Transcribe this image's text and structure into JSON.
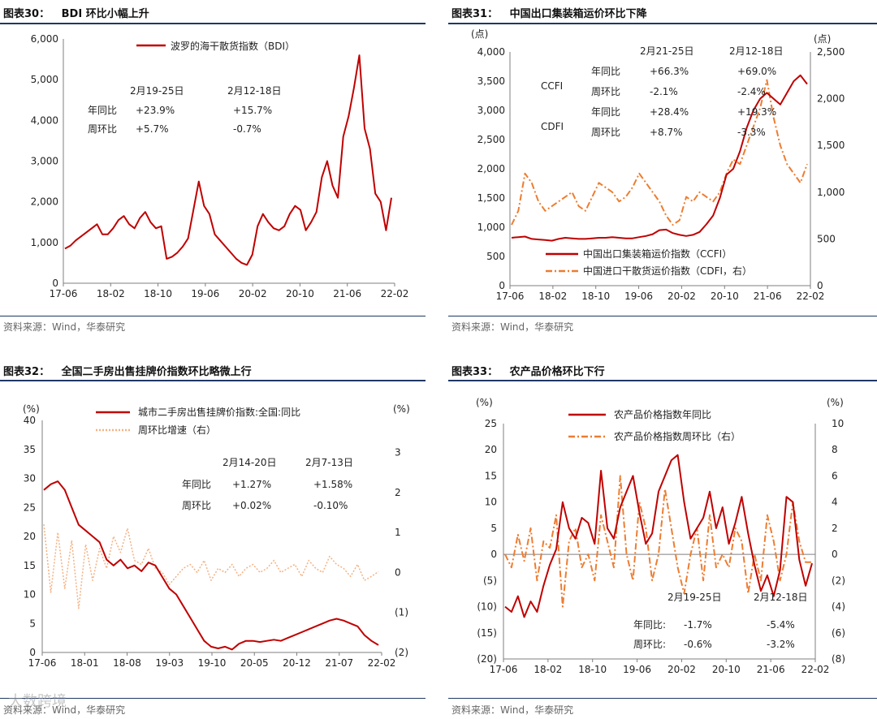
{
  "source_text": "资料来源：Wind，华泰研究",
  "watermark": "大数跨境",
  "colors": {
    "red": "#c00000",
    "orange": "#ed7d31",
    "light_orange": "#f4b183",
    "axis": "#7f7f7f",
    "rule": "#1f3864"
  },
  "chart_data": [
    {
      "type": "line",
      "label": "图表30：",
      "title": "BDI 环比小幅上升",
      "x_ticks": [
        "17-06",
        "18-02",
        "18-10",
        "19-06",
        "20-02",
        "20-10",
        "21-06",
        "22-02"
      ],
      "y_ticks": [
        "0",
        "1,000",
        "2,000",
        "3,000",
        "4,000",
        "5,000",
        "6,000"
      ],
      "ylim": [
        0,
        6000
      ],
      "series": [
        {
          "name": "波罗的海干散货指数（BDI）",
          "values": [
            850,
            920,
            1050,
            1150,
            1250,
            1350,
            1450,
            1200,
            1200,
            1350,
            1550,
            1650,
            1450,
            1350,
            1600,
            1750,
            1500,
            1350,
            1400,
            600,
            650,
            750,
            900,
            1100,
            1800,
            2500,
            1900,
            1700,
            1200,
            1050,
            900,
            750,
            600,
            500,
            450,
            700,
            1400,
            1700,
            1500,
            1350,
            1300,
            1400,
            1700,
            1900,
            1800,
            1300,
            1500,
            1750,
            2600,
            3000,
            2400,
            2100,
            3600,
            4100,
            4800,
            5600,
            3800,
            3300,
            2200,
            2000,
            1300,
            2100
          ]
        }
      ],
      "annotations": {
        "header": [
          "2月19-25日",
          "2月12-18日"
        ],
        "rows": [
          {
            "label": "年同比",
            "values": [
              "+23.9%",
              "+15.7%"
            ]
          },
          {
            "label": "周环比",
            "values": [
              "+5.7%",
              "-0.7%"
            ]
          }
        ]
      }
    },
    {
      "type": "line",
      "label": "图表31：",
      "title": "中国出口集装箱运价环比下降",
      "x_ticks": [
        "17-06",
        "18-02",
        "18-10",
        "19-06",
        "20-02",
        "20-10",
        "21-06",
        "22-02"
      ],
      "y_left_unit": "(点)",
      "y_right_unit": "(点)",
      "y_left_ticks": [
        "0",
        "500",
        "1,000",
        "1,500",
        "2,000",
        "2,500",
        "3,000",
        "3,500",
        "4,000"
      ],
      "y_right_ticks": [
        "0",
        "500",
        "1,000",
        "1,500",
        "2,000",
        "2,500"
      ],
      "ylim_left": [
        0,
        4000
      ],
      "ylim_right": [
        0,
        2500
      ],
      "series": [
        {
          "name": "中国出口集装箱运价指数（CCFI）",
          "axis": "left",
          "values": [
            820,
            830,
            840,
            800,
            790,
            780,
            770,
            800,
            820,
            810,
            800,
            800,
            810,
            820,
            820,
            830,
            820,
            810,
            810,
            830,
            850,
            880,
            950,
            960,
            900,
            870,
            850,
            870,
            920,
            1050,
            1200,
            1500,
            1900,
            2000,
            2300,
            2700,
            3000,
            3200,
            3300,
            3200,
            3100,
            3300,
            3500,
            3600,
            3450
          ]
        },
        {
          "name": "中国进口干散货运价指数（CDFI，右）",
          "axis": "right",
          "values": [
            650,
            800,
            1200,
            1100,
            900,
            800,
            850,
            900,
            950,
            1000,
            850,
            800,
            950,
            1100,
            1050,
            1000,
            900,
            950,
            1050,
            1200,
            1100,
            1000,
            900,
            750,
            650,
            700,
            950,
            900,
            1000,
            950,
            900,
            1000,
            1200,
            1350,
            1300,
            1500,
            1700,
            1900,
            2200,
            1800,
            1500,
            1300,
            1200,
            1100,
            1300
          ]
        }
      ],
      "annotations": {
        "header": [
          "2月21-25日",
          "2月12-18日"
        ],
        "groups": [
          {
            "name": "CCFI",
            "rows": [
              {
                "label": "年同比",
                "values": [
                  "+66.3%",
                  "+69.0%"
                ]
              },
              {
                "label": "周环比",
                "values": [
                  "-2.1%",
                  "-2.4%"
                ]
              }
            ]
          },
          {
            "name": "CDFI",
            "rows": [
              {
                "label": "年同比",
                "values": [
                  "+28.4%",
                  "+19.3%"
                ]
              },
              {
                "label": "周环比",
                "values": [
                  "+8.7%",
                  "-3.3%"
                ]
              }
            ]
          }
        ]
      }
    },
    {
      "type": "line",
      "label": "图表32：",
      "title": "全国二手房出售挂牌价指数环比略微上行",
      "x_ticks": [
        "17-06",
        "18-01",
        "18-08",
        "19-03",
        "19-10",
        "20-05",
        "20-12",
        "21-07",
        "22-02"
      ],
      "y_left_unit": "(%)",
      "y_right_unit": "(%)",
      "y_left_ticks": [
        "0",
        "5",
        "10",
        "15",
        "20",
        "25",
        "30",
        "35",
        "40"
      ],
      "y_right_ticks": [
        "(2)",
        "(1)",
        "0",
        "1",
        "2",
        "3"
      ],
      "ylim_left": [
        0,
        40
      ],
      "ylim_right": [
        -2,
        3.8
      ],
      "series": [
        {
          "name": "城市二手房出售挂牌价指数:全国:同比",
          "axis": "left",
          "values": [
            28,
            29,
            29.5,
            28,
            25,
            22,
            21,
            20,
            19,
            16,
            15,
            16,
            14.5,
            15,
            14,
            15.5,
            15,
            13,
            11,
            10,
            8,
            6,
            4,
            2,
            1,
            0.7,
            1,
            0.5,
            1.5,
            2,
            2,
            1.8,
            2,
            2.2,
            2,
            2.5,
            3,
            3.5,
            4,
            4.5,
            5,
            5.5,
            5.8,
            5.5,
            5,
            4.5,
            3,
            2,
            1.27
          ]
        },
        {
          "name": "周环比增速（右）",
          "axis": "right",
          "values": [
            1.2,
            -0.5,
            1.0,
            -0.4,
            0.8,
            -0.9,
            0.7,
            -0.2,
            0.6,
            0.1,
            0.9,
            0.5,
            1.1,
            0.3,
            0.2,
            0.6,
            0.1,
            0.0,
            -0.3,
            -0.1,
            0.1,
            0.2,
            0.0,
            0.3,
            -0.2,
            0.1,
            0.0,
            0.2,
            -0.1,
            0.1,
            0.2,
            0.0,
            0.1,
            0.3,
            0.0,
            0.1,
            0.2,
            -0.1,
            0.3,
            0.1,
            0.0,
            0.4,
            0.2,
            0.1,
            -0.1,
            0.2,
            -0.2,
            -0.1,
            0.02
          ]
        }
      ],
      "annotations": {
        "header": [
          "2月14-20日",
          "2月7-13日"
        ],
        "rows": [
          {
            "label": "年同比",
            "values": [
              "+1.27%",
              "+1.58%"
            ]
          },
          {
            "label": "周环比",
            "values": [
              "+0.02%",
              "-0.10%"
            ]
          }
        ]
      }
    },
    {
      "type": "line",
      "label": "图表33：",
      "title": "农产品价格环比下行",
      "x_ticks": [
        "17-06",
        "18-02",
        "18-10",
        "19-06",
        "20-02",
        "20-10",
        "21-06",
        "22-02"
      ],
      "y_left_unit": "(%)",
      "y_right_unit": "(%)",
      "y_left_ticks": [
        "(20)",
        "(15)",
        "(10)",
        "(5)",
        "0",
        "5",
        "10",
        "15",
        "20",
        "25"
      ],
      "y_right_ticks": [
        "(8)",
        "(6)",
        "(4)",
        "(2)",
        "0",
        "2",
        "4",
        "6",
        "8",
        "10"
      ],
      "ylim_left": [
        -20,
        25
      ],
      "ylim_right": [
        -8,
        10
      ],
      "series": [
        {
          "name": "农产品价格指数年同比",
          "axis": "left",
          "values": [
            -10,
            -11,
            -8,
            -12,
            -9,
            -11,
            -6,
            -2,
            1,
            10,
            5,
            3,
            7,
            6,
            2,
            16,
            5,
            3,
            9,
            12,
            15,
            8,
            2,
            4,
            12,
            15,
            18,
            19,
            10,
            3,
            5,
            7,
            12,
            5,
            9,
            2,
            6,
            11,
            4,
            -2,
            -7,
            -4,
            -8,
            -3,
            11,
            10,
            -1,
            -6,
            -1.7
          ]
        },
        {
          "name": "农产品价格指数周环比（右）",
          "axis": "right",
          "values": [
            0,
            -1,
            1.5,
            -0.5,
            2,
            -2,
            1,
            0.5,
            3,
            -4,
            1,
            2,
            -1,
            0,
            -2,
            3,
            1,
            -1,
            6,
            0,
            -2,
            4,
            2,
            -2,
            0,
            5,
            2,
            -1,
            -3,
            0,
            2,
            -2,
            3,
            -1,
            0,
            -1,
            2,
            1,
            -3,
            0,
            -2,
            3,
            1,
            -2,
            0,
            4,
            1,
            -0.6,
            -0.6
          ]
        }
      ],
      "annotations": {
        "header": [
          "2月19-25日",
          "2月12-18日"
        ],
        "rows": [
          {
            "label": "年同比:",
            "values": [
              "-1.7%",
              "-5.4%"
            ]
          },
          {
            "label": "周环比:",
            "values": [
              "-0.6%",
              "-3.2%"
            ]
          }
        ]
      }
    }
  ]
}
